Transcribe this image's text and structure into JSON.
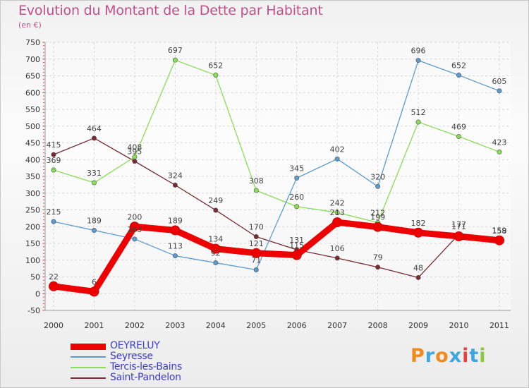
{
  "title": "Evolution du Montant de la Dette par Habitant",
  "subtitle": "(en €)",
  "logo": {
    "text": "Proxiti",
    "colors": [
      "#f08a1c",
      "#3da5e0",
      "#f08a1c",
      "#3da5e0",
      "#e84040",
      "#3da5e0",
      "#8bc63e"
    ]
  },
  "chart_data": {
    "type": "line",
    "x": [
      "2000",
      "2001",
      "2002",
      "2003",
      "2004",
      "2005",
      "2006",
      "2007",
      "2008",
      "2009",
      "2010",
      "2011"
    ],
    "ylim": [
      -50,
      750
    ],
    "yticks": [
      -50,
      0,
      50,
      100,
      150,
      200,
      250,
      300,
      350,
      400,
      450,
      500,
      550,
      600,
      650,
      700,
      750
    ],
    "grid": true,
    "legend_position": "bottom-left",
    "series": [
      {
        "name": "Saint-Pandelon",
        "color": "#7a2a35",
        "values": [
          415,
          464,
          395,
          324,
          249,
          170,
          131,
          106,
          79,
          48,
          177,
          158
        ]
      },
      {
        "name": "Tercis-les-Bains",
        "color": "#88dd55",
        "values": [
          369,
          331,
          408,
          697,
          652,
          308,
          260,
          242,
          212,
          512,
          469,
          423
        ]
      },
      {
        "name": "Seyresse",
        "color": "#5b9bd0",
        "values": [
          215,
          189,
          163,
          113,
          92,
          71,
          345,
          402,
          320,
          696,
          652,
          605
        ]
      },
      {
        "name": "OEYRELUY",
        "color": "#ee0000",
        "values": [
          22,
          6,
          200,
          189,
          134,
          121,
          115,
          213,
          199,
          182,
          171,
          159
        ]
      }
    ]
  }
}
